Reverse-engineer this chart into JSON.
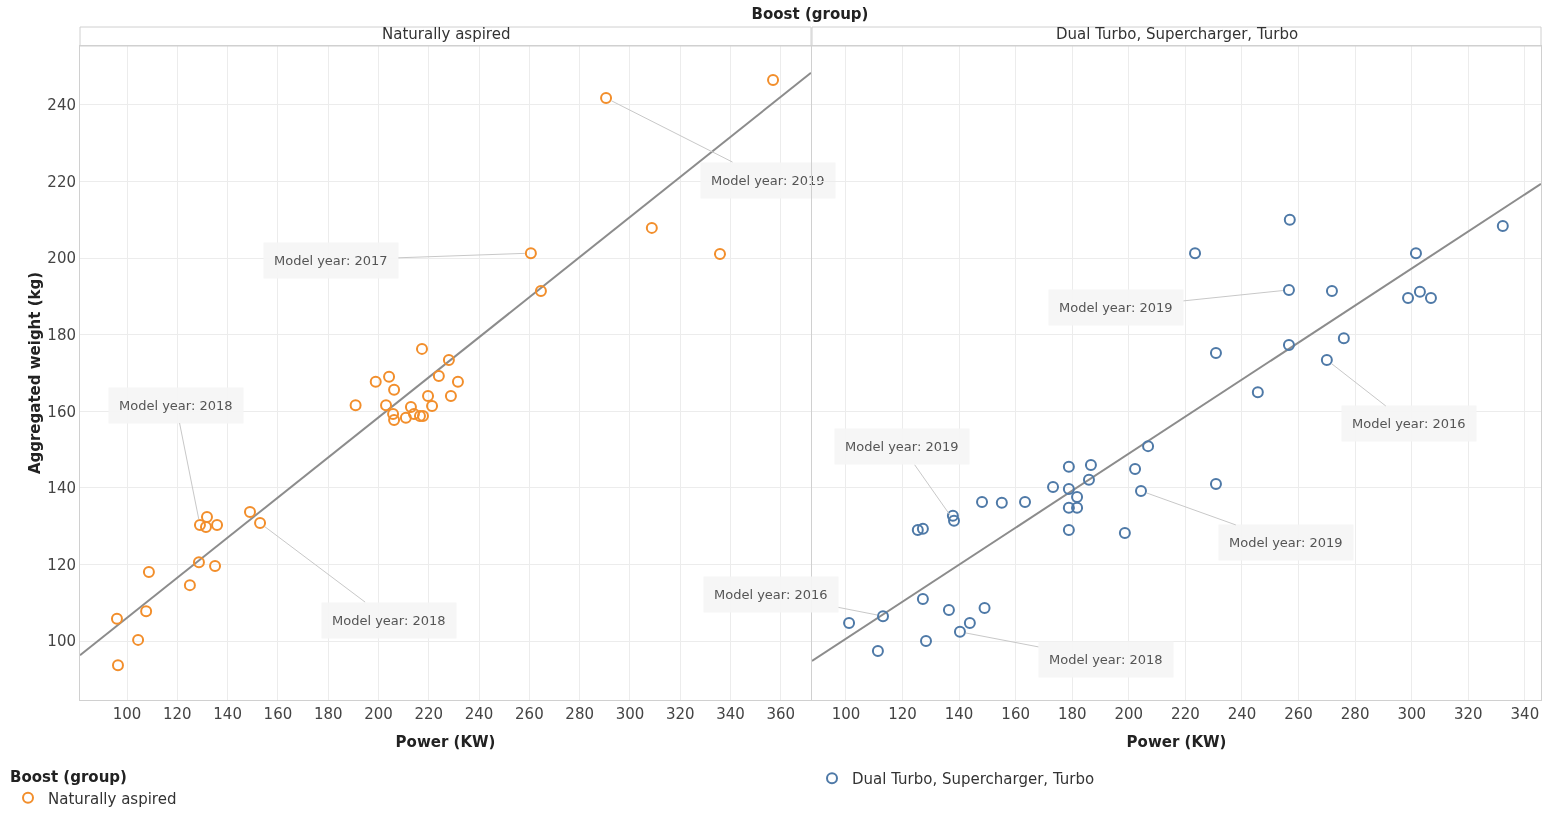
{
  "chart_data": [
    {
      "type": "scatter",
      "title": "Boost (group)",
      "subtitle": "Naturally aspired",
      "xlabel": "Power (KW)",
      "ylabel": "Aggregated weight (kg)",
      "legend_title": "Boost (group)",
      "legend": "bottom",
      "marker": "circle",
      "grid": true,
      "xlim": [
        81.3,
        372
      ],
      "xticks": [
        100,
        120,
        140,
        160,
        180,
        200,
        220,
        240,
        260,
        280,
        300,
        320,
        340,
        360
      ],
      "ylim": [
        84.6,
        255.4
      ],
      "yticks": [
        100,
        120,
        140,
        160,
        180,
        200,
        220,
        240
      ],
      "series": [
        {
          "name": "Naturally aspired",
          "color": "#f28e2b",
          "x": [
            96,
            96.4,
            104.4,
            107.6,
            108.7,
            125,
            128.6,
            135,
            129,
            131.4,
            131.8,
            135.8,
            148.9,
            152.9,
            190.9,
            198.9,
            204.2,
            206.2,
            203,
            205.8,
            206.2,
            210.9,
            212.9,
            214.1,
            216.5,
            217.7,
            217.3,
            221.3,
            219.7,
            224,
            228,
            228.8,
            231.6,
            260.6,
            264.6,
            290.5,
            308.7,
            335.8,
            356.9
          ],
          "values": [
            105.8,
            93.7,
            100.3,
            107.8,
            118,
            114.6,
            120.6,
            119.6,
            130.3,
            129.8,
            132.4,
            130.3,
            133.7,
            130.8,
            161.6,
            167.7,
            169,
            165.6,
            161.6,
            159.3,
            157.7,
            158.3,
            161.1,
            159.3,
            158.8,
            158.8,
            176.3,
            161.4,
            164,
            169.2,
            173.4,
            164,
            167.7,
            201.3,
            191.4,
            241.8,
            207.9,
            201.1,
            246.5
          ]
        },
        {
          "type": "line",
          "marker": "none",
          "color": "#8c8c8c",
          "x": [
            81.3,
            372
          ],
          "values": [
            96.3,
            248.4
          ]
        }
      ],
      "annotations": [
        {
          "text": "Model year: 2017",
          "x": 260.6,
          "y": 201.3
        },
        {
          "text": "Model year: 2019",
          "x": 290.5,
          "y": 241.8
        },
        {
          "text": "Model year: 2018",
          "x": 129,
          "y": 130.3
        },
        {
          "text": "Model year: 2018",
          "x": 152.9,
          "y": 130.8
        }
      ]
    },
    {
      "type": "scatter",
      "subtitle": "Dual Turbo, Supercharger, Turbo",
      "xlabel": "Power (KW)",
      "legend": "bottom",
      "marker": "circle",
      "grid": true,
      "tick_labels": "x",
      "xlim": [
        88,
        345.7
      ],
      "xticks": [
        100,
        120,
        140,
        160,
        180,
        200,
        220,
        240,
        260,
        280,
        300,
        320,
        340
      ],
      "ylim": [
        84.6,
        255.4
      ],
      "yticks": [
        100,
        120,
        140,
        160,
        180,
        200,
        220,
        240
      ],
      "series": [
        {
          "name": "Dual Turbo, Supercharger, Turbo",
          "color": "#4e79a7",
          "x": [
            101.1,
            111.3,
            113.1,
            127.2,
            128.3,
            136.4,
            140.3,
            143.8,
            149,
            125.4,
            127.2,
            137.8,
            138.2,
            148.1,
            155.1,
            163.3,
            173.2,
            178.8,
            178.8,
            181.7,
            181.7,
            178.8,
            178.8,
            186.6,
            185.9,
            198.6,
            202.2,
            204.3,
            206.8,
            230.8,
            245.6,
            230.8,
            223.4,
            256.9,
            256.6,
            256.6,
            271.8,
            276,
            270,
            298.7,
            302.9,
            306.8,
            301.5,
            332.2
          ],
          "values": [
            104.7,
            97.4,
            106.5,
            111,
            100,
            108.1,
            102.4,
            104.7,
            108.6,
            129,
            129.3,
            132.7,
            131.4,
            136.3,
            136.1,
            136.3,
            140.2,
            145.5,
            139.7,
            137.6,
            134.8,
            134.8,
            129,
            146,
            142.1,
            128.2,
            144.9,
            139.2,
            150.9,
            141,
            165,
            175.2,
            201.3,
            210,
            191.7,
            177.3,
            191.4,
            179.1,
            173.4,
            189.6,
            191.2,
            189.6,
            201.3,
            208.4
          ]
        },
        {
          "type": "line",
          "marker": "none",
          "color": "#8c8c8c",
          "x": [
            88,
            345.7
          ],
          "values": [
            94.8,
            219.4
          ]
        }
      ],
      "annotations": [
        {
          "text": "Model year: 2019",
          "x": 256.6,
          "y": 191.7
        },
        {
          "text": "Model year: 2016",
          "x": 270,
          "y": 173.4
        },
        {
          "text": "Model year: 2019",
          "x": 138.2,
          "y": 131.4
        },
        {
          "text": "Model year: 2019",
          "x": 204.3,
          "y": 139.2
        },
        {
          "text": "Model year: 2016",
          "x": 113.1,
          "y": 106.5
        },
        {
          "text": "Model year: 2018",
          "x": 140.3,
          "y": 102.4
        }
      ]
    }
  ]
}
